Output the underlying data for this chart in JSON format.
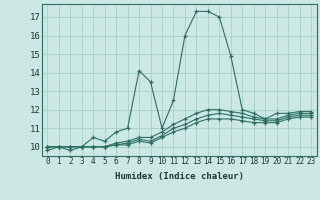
{
  "xlabel": "Humidex (Indice chaleur)",
  "bg_color": "#cce8e4",
  "grid_color": "#a0ccbf",
  "line_color": "#2e6e64",
  "xlim": [
    -0.5,
    23.5
  ],
  "ylim": [
    9.5,
    17.7
  ],
  "xticks": [
    0,
    1,
    2,
    3,
    4,
    5,
    6,
    7,
    8,
    9,
    10,
    11,
    12,
    13,
    14,
    15,
    16,
    17,
    18,
    19,
    20,
    21,
    22,
    23
  ],
  "yticks": [
    10,
    11,
    12,
    13,
    14,
    15,
    16,
    17
  ],
  "lines": [
    {
      "x": [
        0,
        1,
        2,
        3,
        4,
        5,
        6,
        7,
        8,
        9,
        10,
        11,
        12,
        13,
        14,
        15,
        16,
        17,
        18,
        19,
        20,
        21,
        22,
        23
      ],
      "y": [
        10.0,
        10.0,
        10.0,
        10.0,
        10.0,
        10.0,
        10.1,
        10.1,
        10.3,
        10.2,
        10.5,
        10.8,
        11.0,
        11.3,
        11.5,
        11.5,
        11.5,
        11.4,
        11.3,
        11.3,
        11.3,
        11.5,
        11.6,
        11.6
      ]
    },
    {
      "x": [
        0,
        1,
        2,
        3,
        4,
        5,
        6,
        7,
        8,
        9,
        10,
        11,
        12,
        13,
        14,
        15,
        16,
        17,
        18,
        19,
        20,
        21,
        22,
        23
      ],
      "y": [
        10.0,
        10.0,
        10.0,
        10.0,
        10.0,
        10.0,
        10.1,
        10.2,
        10.4,
        10.3,
        10.6,
        11.0,
        11.2,
        11.5,
        11.7,
        11.8,
        11.7,
        11.6,
        11.5,
        11.4,
        11.4,
        11.6,
        11.7,
        11.7
      ]
    },
    {
      "x": [
        0,
        1,
        2,
        3,
        4,
        5,
        6,
        7,
        8,
        9,
        10,
        11,
        12,
        13,
        14,
        15,
        16,
        17,
        18,
        19,
        20,
        21,
        22,
        23
      ],
      "y": [
        10.0,
        10.0,
        10.0,
        10.0,
        10.0,
        10.0,
        10.2,
        10.3,
        10.5,
        10.5,
        10.8,
        11.2,
        11.5,
        11.8,
        12.0,
        12.0,
        11.9,
        11.8,
        11.6,
        11.5,
        11.5,
        11.7,
        11.8,
        11.8
      ]
    },
    {
      "x": [
        0,
        1,
        2,
        3,
        4,
        5,
        6,
        7,
        8,
        9,
        10,
        11,
        12,
        13,
        14,
        15,
        16,
        17,
        18,
        19,
        20,
        21,
        22,
        23
      ],
      "y": [
        9.8,
        10.0,
        9.8,
        10.0,
        10.5,
        10.3,
        10.8,
        11.0,
        14.1,
        13.5,
        11.0,
        12.5,
        16.0,
        17.3,
        17.3,
        17.0,
        14.9,
        12.0,
        11.8,
        11.5,
        11.8,
        11.8,
        11.9,
        11.9
      ]
    }
  ]
}
